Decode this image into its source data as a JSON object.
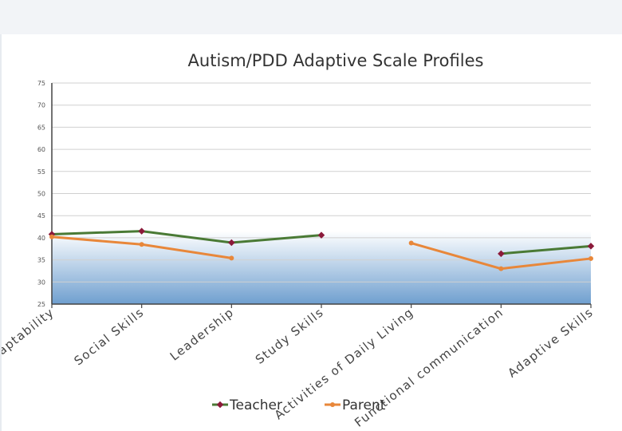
{
  "chart_data": {
    "type": "line",
    "title": "Autism/PDD Adaptive Scale Profiles",
    "xlabel": "",
    "ylabel": "",
    "categories": [
      "Adaptability",
      "Social Skills",
      "Leadership",
      "Study Skills",
      "Activities of Daily Living",
      "Functional communication",
      "Adaptive Skills"
    ],
    "ylim": [
      25,
      75
    ],
    "yticks": [
      25,
      30,
      35,
      40,
      45,
      50,
      55,
      60,
      65,
      70,
      75
    ],
    "grid": true,
    "legend": "bottom",
    "series": [
      {
        "name": "Teacher",
        "color": "#4a7a35",
        "marker_color": "#8b1a3a",
        "values": [
          40.8,
          41.5,
          38.9,
          40.6,
          null,
          36.4,
          38.1
        ]
      },
      {
        "name": "Parent",
        "color": "#e8873a",
        "marker_color": "#e8873a",
        "values": [
          40.2,
          38.5,
          35.4,
          null,
          38.8,
          33.0,
          35.3
        ]
      }
    ]
  }
}
